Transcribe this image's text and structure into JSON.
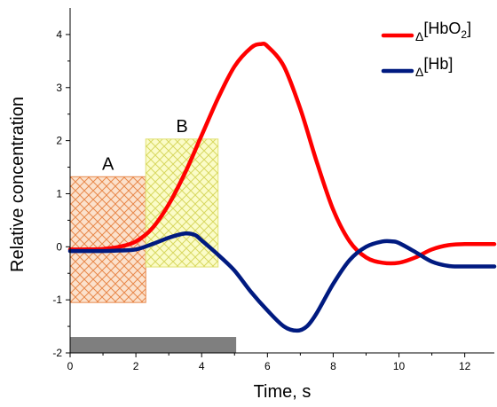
{
  "chart_data": {
    "type": "line",
    "xlabel": "Time, s",
    "ylabel": "Relative concentration",
    "xlim": [
      0,
      12.9
    ],
    "ylim": [
      -2,
      4.5
    ],
    "xticks": [
      "0",
      "2",
      "4",
      "6",
      "8",
      "10",
      "12"
    ],
    "yticks": [
      "-2",
      "-1",
      "0",
      "1",
      "2",
      "3",
      "4"
    ],
    "grid": false,
    "legend_position": "top-right",
    "series": [
      {
        "name": "Δ[HbO2]",
        "legend_prefix": "Δ",
        "legend_main": "[HbO",
        "legend_sub": "2",
        "legend_suffix": "]",
        "color": "#ff0000",
        "x": [
          0,
          0.5,
          1.0,
          1.5,
          2.0,
          2.5,
          3.0,
          3.5,
          4.0,
          4.5,
          5.0,
          5.5,
          5.8,
          6.0,
          6.5,
          7.0,
          7.5,
          8.0,
          8.5,
          9.0,
          9.5,
          10.0,
          10.5,
          11.0,
          11.5,
          12.0,
          12.5,
          12.9
        ],
        "y": [
          -0.05,
          -0.05,
          -0.04,
          0.0,
          0.1,
          0.35,
          0.8,
          1.4,
          2.1,
          2.8,
          3.4,
          3.75,
          3.82,
          3.78,
          3.4,
          2.6,
          1.6,
          0.7,
          0.1,
          -0.2,
          -0.3,
          -0.3,
          -0.2,
          -0.05,
          0.03,
          0.05,
          0.05,
          0.05
        ]
      },
      {
        "name": "Δ[Hb]",
        "legend_prefix": "Δ",
        "legend_main": "[Hb]",
        "legend_sub": "",
        "legend_suffix": "",
        "color": "#001a80",
        "x": [
          0,
          0.5,
          1.0,
          1.5,
          2.0,
          2.5,
          3.0,
          3.5,
          3.8,
          4.0,
          4.5,
          5.0,
          5.5,
          6.0,
          6.5,
          6.9,
          7.2,
          7.5,
          8.0,
          8.5,
          9.0,
          9.5,
          9.8,
          10.0,
          10.5,
          11.0,
          11.5,
          12.0,
          12.5,
          12.9
        ],
        "y": [
          -0.08,
          -0.08,
          -0.08,
          -0.07,
          -0.05,
          0.05,
          0.17,
          0.25,
          0.22,
          0.12,
          -0.15,
          -0.45,
          -0.85,
          -1.2,
          -1.5,
          -1.58,
          -1.5,
          -1.25,
          -0.7,
          -0.25,
          0.0,
          0.1,
          0.1,
          0.07,
          -0.1,
          -0.28,
          -0.36,
          -0.37,
          -0.37,
          -0.37
        ]
      }
    ],
    "regions": [
      {
        "label": "A",
        "x0": 0.0,
        "x1": 2.3,
        "y0": -1.05,
        "y1": 1.32,
        "fill": "#f7c6a3",
        "hatch": "#e8884a"
      },
      {
        "label": "B",
        "x0": 2.3,
        "x1": 4.5,
        "y0": -0.38,
        "y1": 2.03,
        "fill": "#f4f7a3",
        "hatch": "#e0e070"
      }
    ],
    "stimulus_bar": {
      "x0": 0.0,
      "x1": 5.05,
      "y0": -2.0,
      "y1": -1.7,
      "color": "#7f7f7f"
    }
  }
}
